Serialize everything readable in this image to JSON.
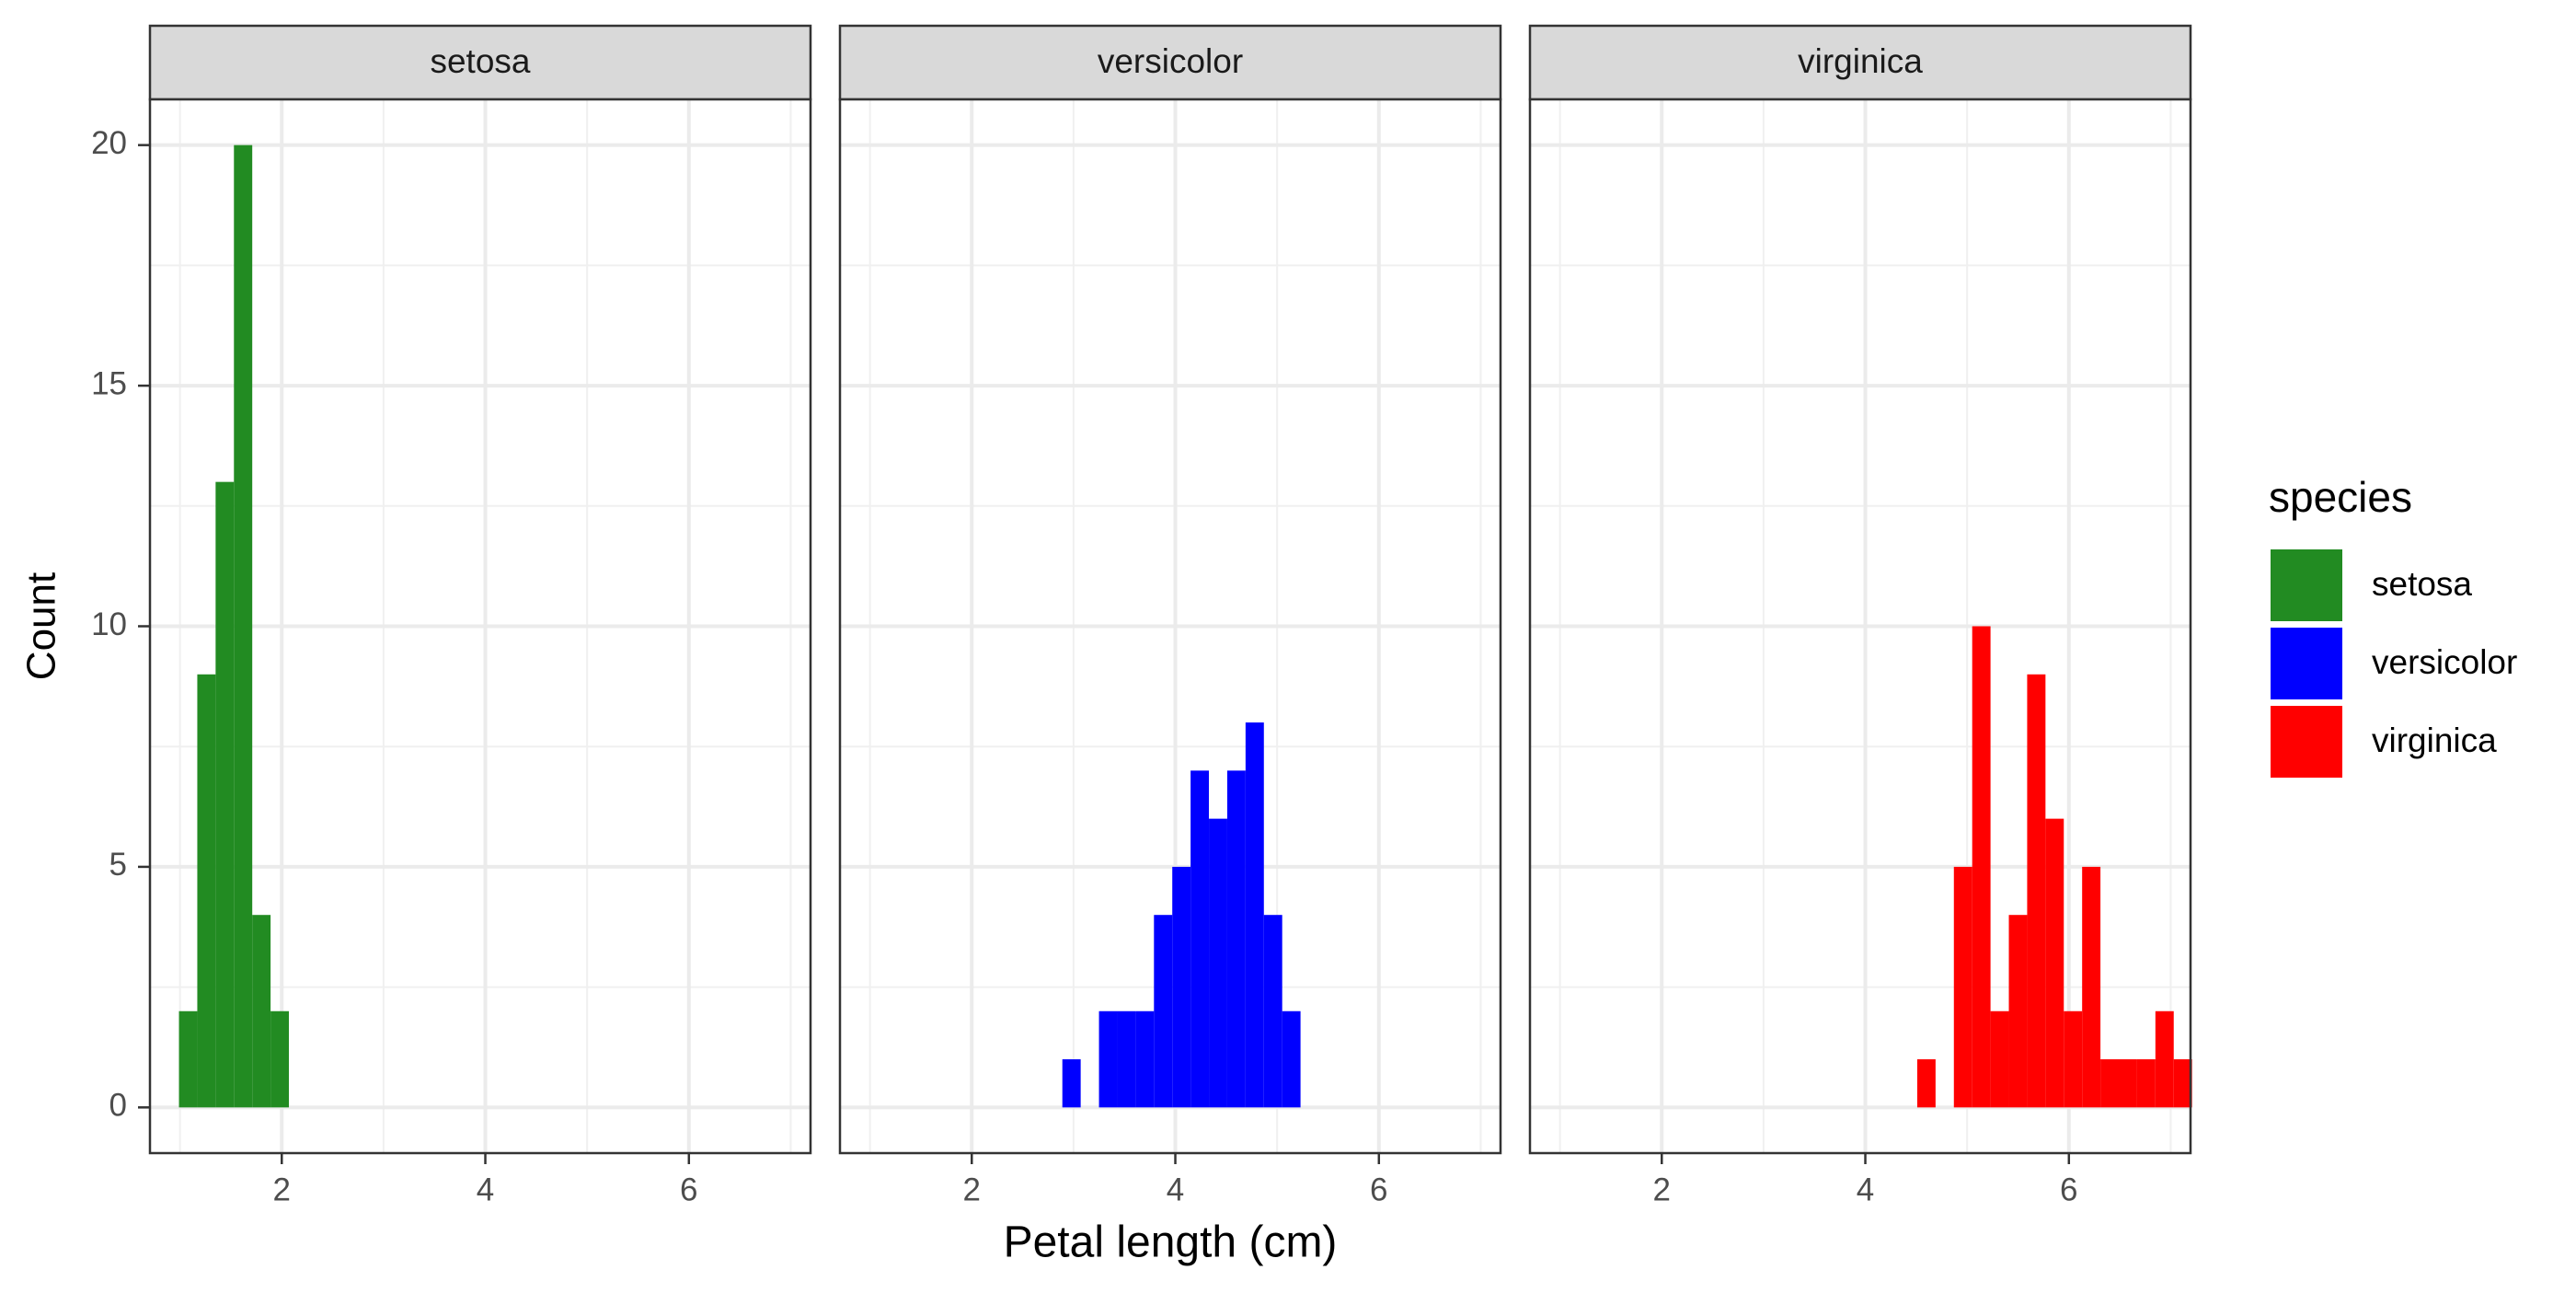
{
  "chart_data": {
    "type": "bar",
    "subtype": "faceted-histogram",
    "xlabel": "Petal length (cm)",
    "ylabel": "Count",
    "xlim": [
      0.705,
      7.195
    ],
    "ylim": [
      -0.95,
      20.95
    ],
    "x_ticks": [
      2,
      4,
      6
    ],
    "y_ticks": [
      0,
      5,
      10,
      15,
      20
    ],
    "bin_width": 0.18,
    "grid": true,
    "legend": {
      "title": "species",
      "position": "right",
      "entries": [
        {
          "label": "setosa",
          "color": "#228B22"
        },
        {
          "label": "versicolor",
          "color": "#0000FF"
        },
        {
          "label": "virginica",
          "color": "#FF0000"
        }
      ]
    },
    "facets": [
      {
        "strip": "setosa",
        "color": "#228B22",
        "bins": [
          {
            "x": 1.08,
            "count": 2
          },
          {
            "x": 1.26,
            "count": 9
          },
          {
            "x": 1.44,
            "count": 13
          },
          {
            "x": 1.62,
            "count": 20
          },
          {
            "x": 1.8,
            "count": 4
          },
          {
            "x": 1.98,
            "count": 2
          }
        ]
      },
      {
        "strip": "versicolor",
        "color": "#0000FF",
        "bins": [
          {
            "x": 2.98,
            "count": 1
          },
          {
            "x": 3.34,
            "count": 2
          },
          {
            "x": 3.52,
            "count": 2
          },
          {
            "x": 3.7,
            "count": 2
          },
          {
            "x": 3.88,
            "count": 4
          },
          {
            "x": 4.06,
            "count": 5
          },
          {
            "x": 4.24,
            "count": 7
          },
          {
            "x": 4.42,
            "count": 6
          },
          {
            "x": 4.6,
            "count": 7
          },
          {
            "x": 4.78,
            "count": 8
          },
          {
            "x": 4.96,
            "count": 4
          },
          {
            "x": 5.14,
            "count": 2
          }
        ]
      },
      {
        "strip": "virginica",
        "color": "#FF0000",
        "bins": [
          {
            "x": 4.6,
            "count": 1
          },
          {
            "x": 4.96,
            "count": 5
          },
          {
            "x": 5.14,
            "count": 10
          },
          {
            "x": 5.32,
            "count": 2
          },
          {
            "x": 5.5,
            "count": 4
          },
          {
            "x": 5.68,
            "count": 9
          },
          {
            "x": 5.86,
            "count": 6
          },
          {
            "x": 6.04,
            "count": 2
          },
          {
            "x": 6.22,
            "count": 5
          },
          {
            "x": 6.4,
            "count": 1
          },
          {
            "x": 6.58,
            "count": 1
          },
          {
            "x": 6.76,
            "count": 1
          },
          {
            "x": 6.94,
            "count": 2
          },
          {
            "x": 7.12,
            "count": 1
          }
        ]
      }
    ]
  }
}
